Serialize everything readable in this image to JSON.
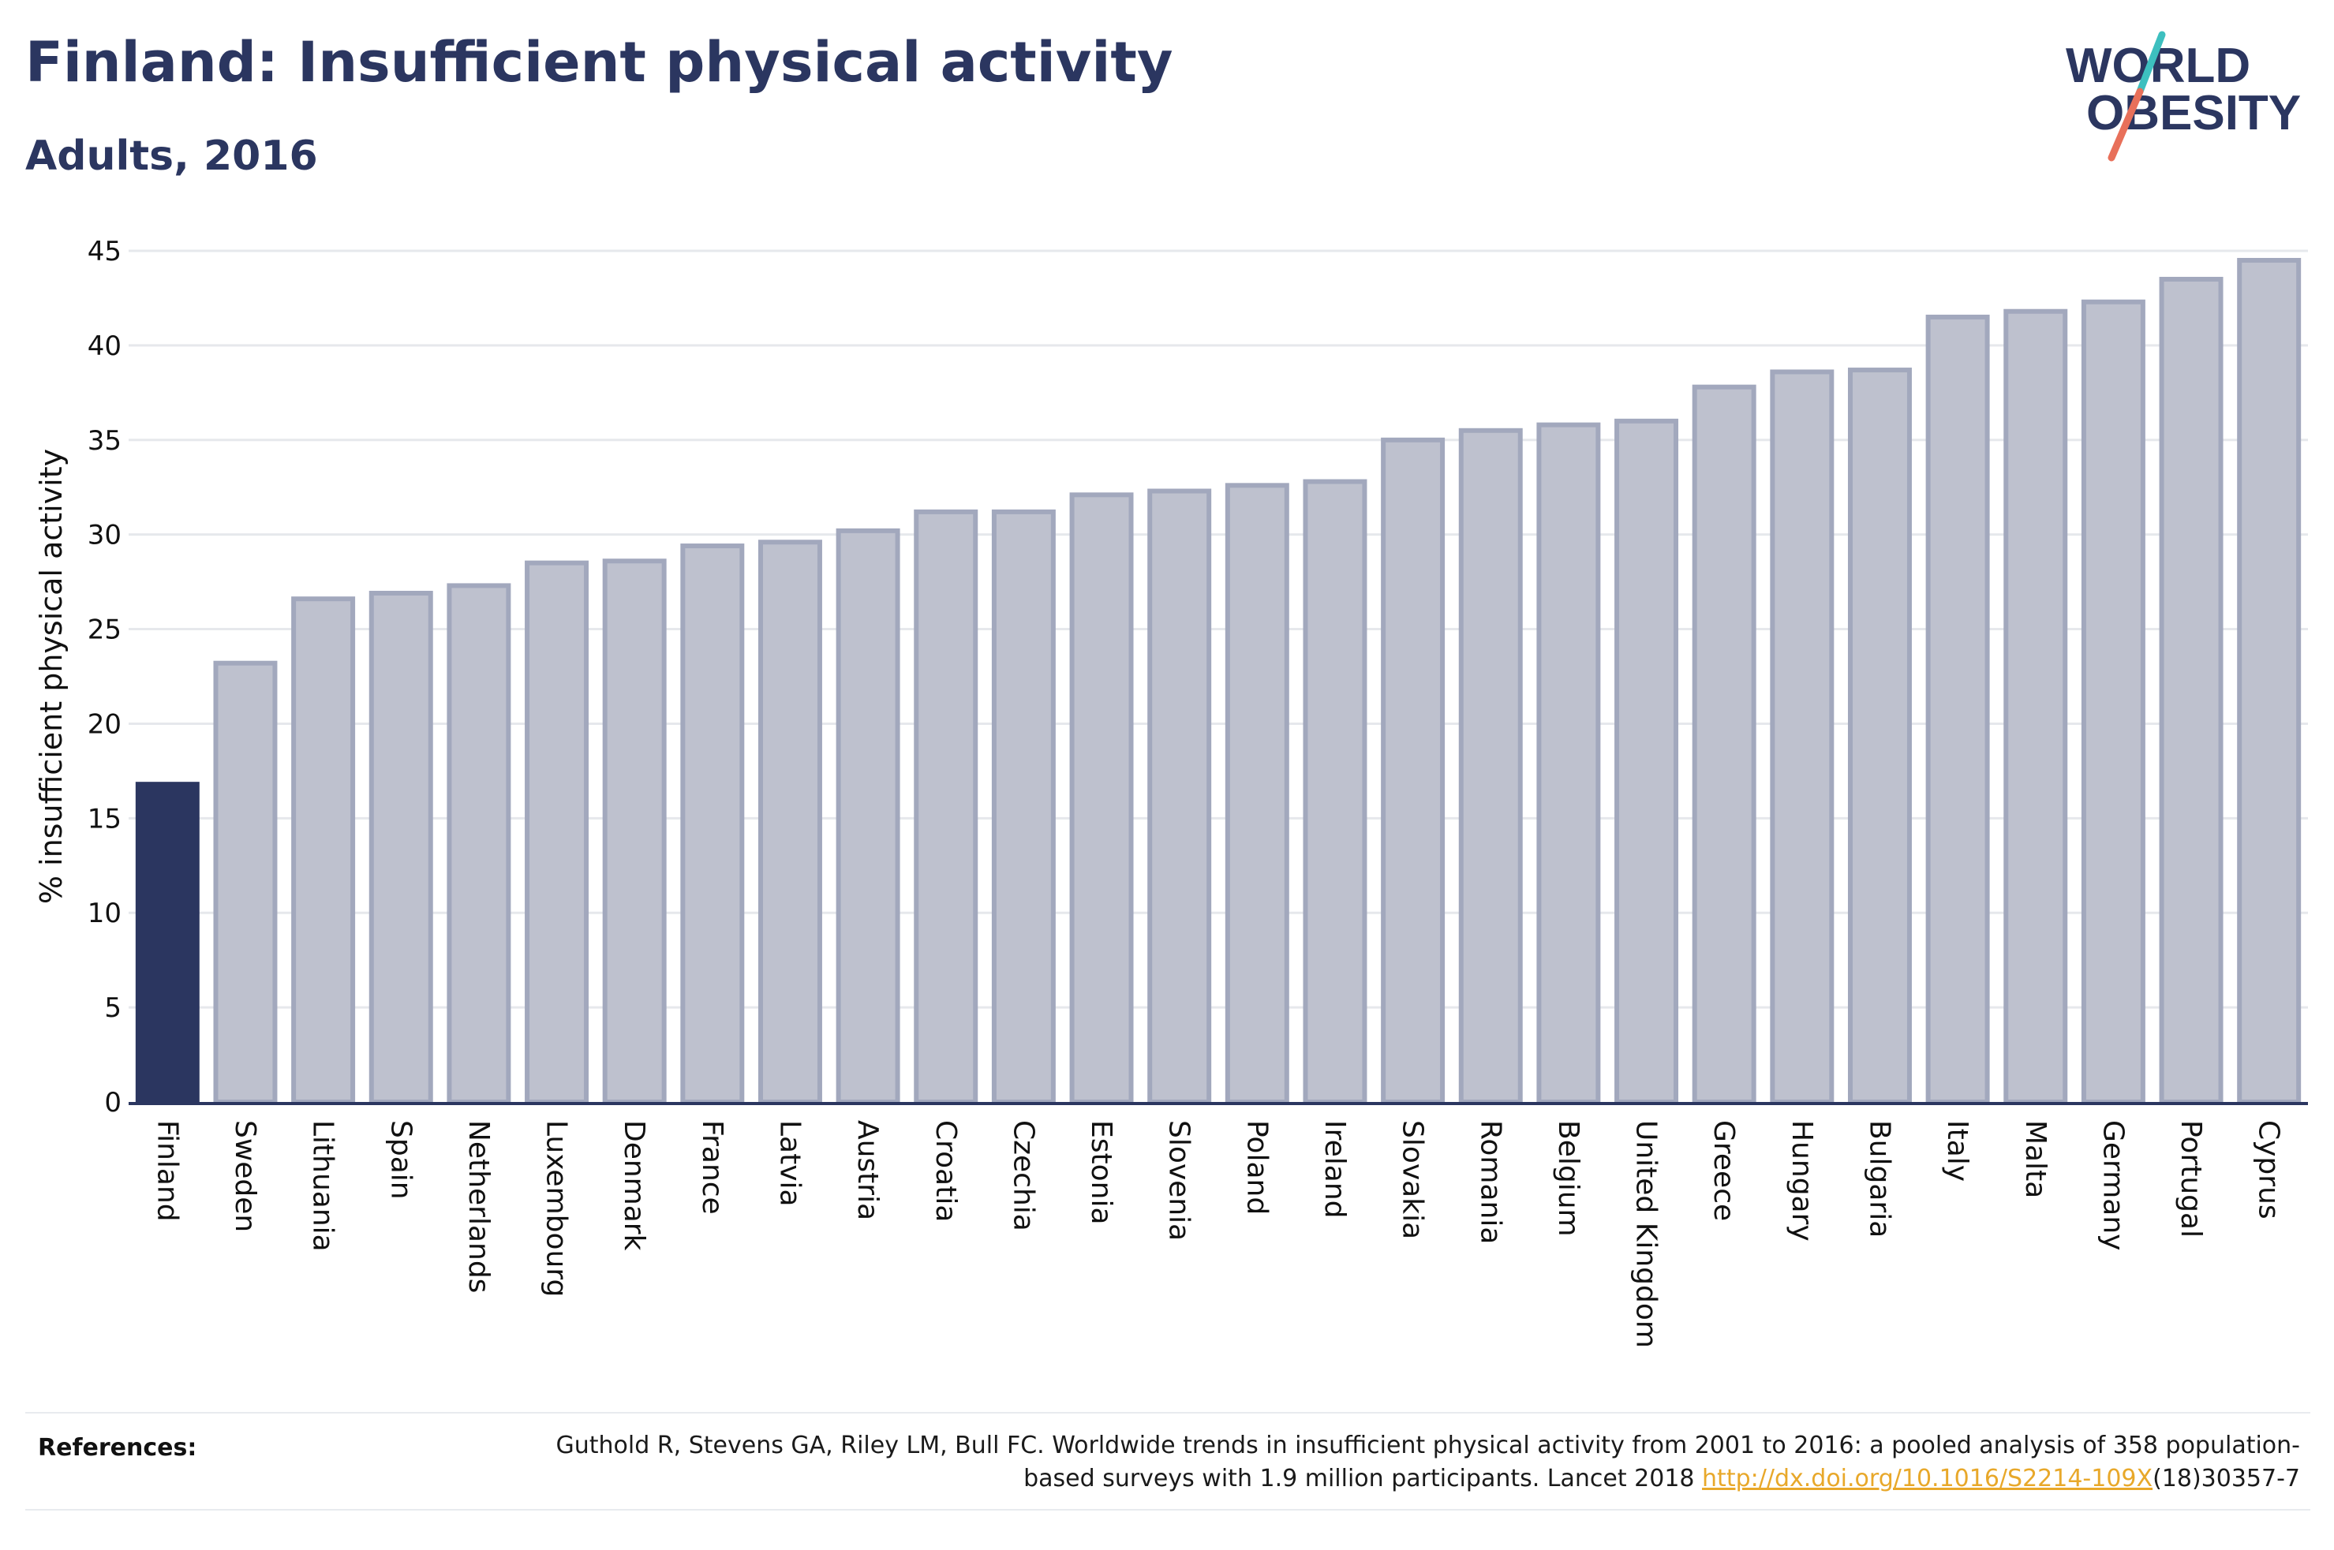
{
  "header": {
    "title": "Finland: Insufficient physical activity",
    "subtitle": "Adults, 2016"
  },
  "logo": {
    "line1": "WORLD",
    "line2": "OBESITY",
    "accent_teal": "#3dbfbf",
    "accent_coral": "#e8705a"
  },
  "colors": {
    "highlight": "#2b3660",
    "bar_fill": "#bec1ce",
    "bar_stroke": "#a2a8bd",
    "grid": "#e6e8ec",
    "text": "#2b3660"
  },
  "chart_data": {
    "type": "bar",
    "ylabel": "% insufficient physical activity",
    "xlabel": "",
    "ylim": [
      0,
      45
    ],
    "yticks": [
      0,
      5,
      10,
      15,
      20,
      25,
      30,
      35,
      40,
      45
    ],
    "grid": true,
    "highlight": "Finland",
    "categories": [
      "Finland",
      "Sweden",
      "Lithuania",
      "Spain",
      "Netherlands",
      "Luxembourg",
      "Denmark",
      "France",
      "Latvia",
      "Austria",
      "Croatia",
      "Czechia",
      "Estonia",
      "Slovenia",
      "Poland",
      "Ireland",
      "Slovakia",
      "Romania",
      "Belgium",
      "United Kingdom",
      "Greece",
      "Hungary",
      "Bulgaria",
      "Italy",
      "Malta",
      "Germany",
      "Portugal",
      "Cyprus"
    ],
    "values": [
      16.8,
      23.2,
      26.6,
      26.9,
      27.3,
      28.5,
      28.6,
      29.4,
      29.6,
      30.2,
      31.2,
      31.2,
      32.1,
      32.3,
      32.6,
      32.8,
      35.0,
      35.5,
      35.8,
      36.0,
      37.8,
      38.6,
      38.7,
      41.5,
      41.8,
      42.3,
      43.5,
      44.5
    ]
  },
  "references": {
    "label": "References:",
    "text_before": "Guthold R, Stevens GA, Riley LM, Bull FC. Worldwide trends in insufficient physical activity from 2001 to 2016: a pooled analysis of 358 population-based surveys with 1.9 million participants. Lancet 2018 ",
    "link_text": "http://dx.doi.org/10.1016/S2214-109X",
    "text_after": "(18)30357-7"
  }
}
